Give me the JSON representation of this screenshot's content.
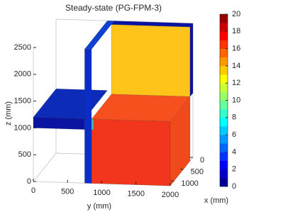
{
  "chart_data": {
    "type": "surface3d",
    "title": "Steady-state (PG-FPM-3)",
    "xlabel": "x (mm)",
    "ylabel": "y (mm)",
    "zlabel": "z (mm)",
    "xlim": [
      0,
      1200
    ],
    "ylim": [
      0,
      2000
    ],
    "zlim": [
      0,
      2500
    ],
    "xticks": [
      0,
      500,
      1000
    ],
    "yticks": [
      0,
      500,
      1000,
      1500,
      2000
    ],
    "zticks": [
      0,
      500,
      1000,
      1500,
      2000,
      2500
    ],
    "colormap": "jet",
    "clim": [
      0,
      20
    ],
    "cticks": [
      0,
      2,
      4,
      6,
      8,
      10,
      12,
      14,
      16,
      18,
      20
    ]
  }
}
